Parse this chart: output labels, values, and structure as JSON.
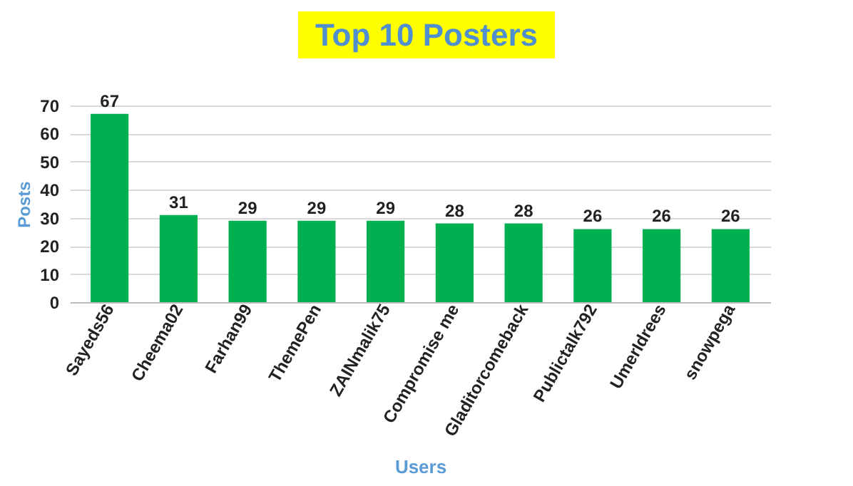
{
  "chart_data": {
    "type": "bar",
    "title": "Top 10 Posters",
    "xlabel": "Users",
    "ylabel": "Posts",
    "categories": [
      "Sayeds56",
      "Cheema02",
      "Farhan99",
      "ThemePen",
      "ZAINmalik75",
      "Compromise me",
      "Gladitorcomeback",
      "Publictalk792",
      "UmerIdrees",
      "snowpega"
    ],
    "values": [
      67,
      31,
      29,
      29,
      29,
      28,
      28,
      26,
      26,
      26
    ],
    "color": "#00b050",
    "ylim": [
      0,
      70
    ],
    "yticks": [
      0,
      10,
      20,
      30,
      40,
      50,
      60,
      70
    ],
    "grid": "y",
    "data_labels": true
  }
}
